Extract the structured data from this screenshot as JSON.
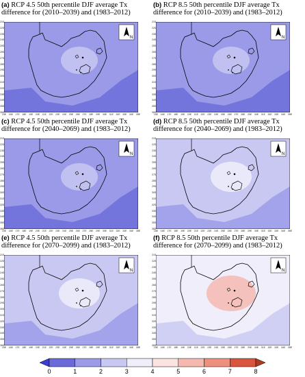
{
  "panels": [
    {
      "id": "a",
      "label": "(a)",
      "title": "RCP 4.5 50th percentile DJF average Tx",
      "subtitle": "difference for (2010–2039) and (1983–2012)",
      "scenario": "RCP 4.5",
      "period": "2010–2039",
      "mean_change_class": 2,
      "hotspot_class": 3
    },
    {
      "id": "b",
      "label": "(b)",
      "title": "RCP 8.5 50th percentile DJF average Tx",
      "subtitle": "difference for (2010–2039) and (1983–2012)",
      "scenario": "RCP 8.5",
      "period": "2010–2039",
      "mean_change_class": 2,
      "hotspot_class": 3
    },
    {
      "id": "c",
      "label": "(c)",
      "title": "RCP 4.5 50th percentile DJF average Tx",
      "subtitle": "difference for (2040–2069) and (1983–2012)",
      "scenario": "RCP 4.5",
      "period": "2040–2069",
      "mean_change_class": 2,
      "hotspot_class": 3
    },
    {
      "id": "d",
      "label": "(d)",
      "title": "RCP 8.5 50th percentile DJF average Tx",
      "subtitle": "difference for (2040–2069) and (1983–2012)",
      "scenario": "RCP 8.5",
      "period": "2040–2069",
      "mean_change_class": 3,
      "hotspot_class": 4
    },
    {
      "id": "e",
      "label": "(e)",
      "title": "RCP 4.5 50th percentile DJF average Tx",
      "subtitle": "difference for (2070–2099) and (1983–2012)",
      "scenario": "RCP 4.5",
      "period": "2070–2099",
      "mean_change_class": 3,
      "hotspot_class": 4
    },
    {
      "id": "f",
      "label": "(f)",
      "title": "RCP 8.5 50th percentile DJF average Tx",
      "subtitle": "difference for (2070–2099) and (1983–2012)",
      "scenario": "RCP 8.5",
      "period": "2070–2099",
      "mean_change_class": 4,
      "hotspot_class": 6
    }
  ],
  "north_arrow_label": "N",
  "lon_ticks": [
    "15E",
    "16E",
    "17E",
    "18E",
    "19E",
    "20E",
    "21E",
    "22E",
    "23E",
    "24E",
    "25E",
    "26E",
    "27E",
    "28E",
    "29E",
    "30E",
    "31E",
    "32E",
    "33E",
    "34E",
    "35E"
  ],
  "lat_ticks": [
    "21S",
    "22S",
    "23S",
    "24S",
    "25S",
    "26S",
    "27S",
    "28S",
    "29S",
    "30S",
    "31S",
    "32S",
    "33S",
    "34S",
    "35S",
    "36S"
  ],
  "colorbar": {
    "labels": [
      "0",
      "1",
      "2",
      "3",
      "4",
      "5",
      "6",
      "7",
      "8"
    ],
    "colors": [
      "#3b3bd6",
      "#6a6ad9",
      "#9a9ae8",
      "#c8c8f2",
      "#f0eefa",
      "#fbe3e0",
      "#f5b9b0",
      "#ef8f7d",
      "#d9553e",
      "#b03a22"
    ]
  }
}
